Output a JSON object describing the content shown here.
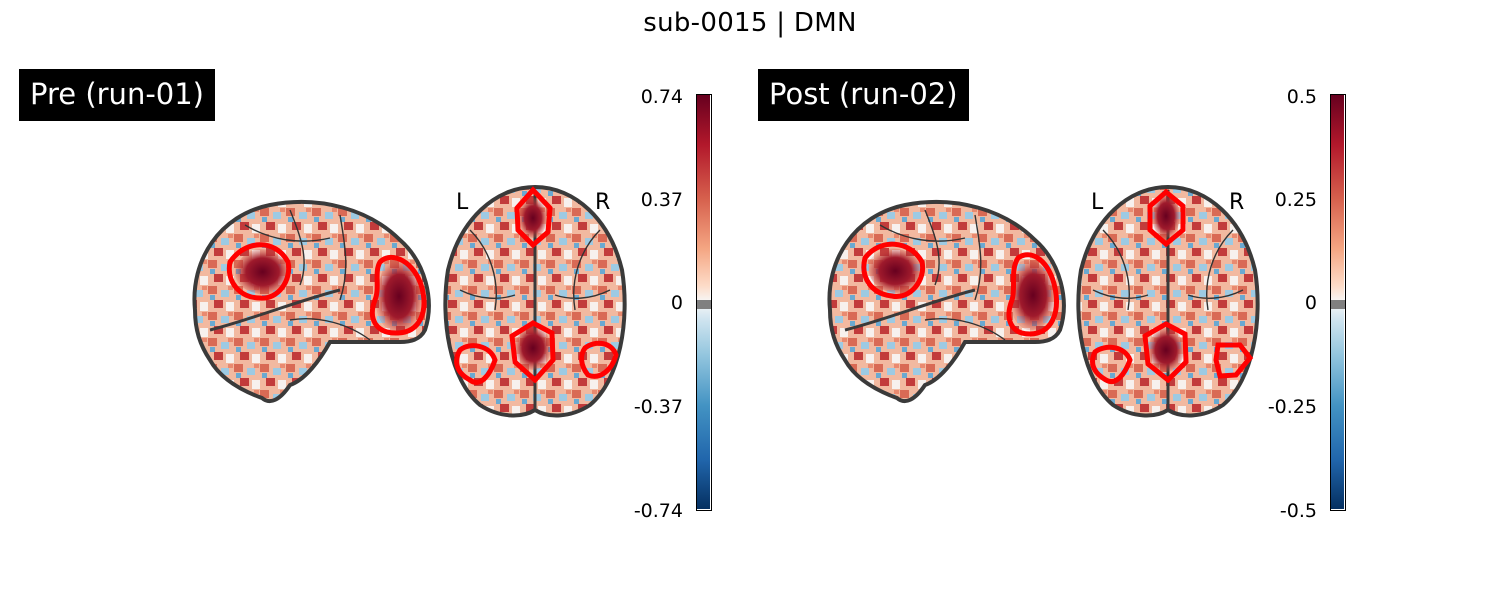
{
  "figure": {
    "title": "sub-0015 | DMN"
  },
  "panels": [
    {
      "label": "Pre (run-01)",
      "orientation": {
        "left": "L",
        "right": "R"
      },
      "colorbar": {
        "ticks": [
          "0.74",
          "0.37",
          "0",
          "-0.37",
          "-0.74"
        ],
        "min": -0.74,
        "max": 0.74,
        "colormap": "RdBu_r"
      }
    },
    {
      "label": "Post (run-02)",
      "orientation": {
        "left": "L",
        "right": "R"
      },
      "colorbar": {
        "ticks": [
          "0.5",
          "0.25",
          "0",
          "-0.25",
          "-0.5"
        ],
        "min": -0.5,
        "max": 0.5,
        "colormap": "RdBu_r"
      }
    }
  ],
  "colors": {
    "roi_outline": "#ff0000",
    "brain_outline": "#3a3a3a",
    "colorbar_neutral": "#808080",
    "hot": "#67001f",
    "cold": "#053061"
  }
}
